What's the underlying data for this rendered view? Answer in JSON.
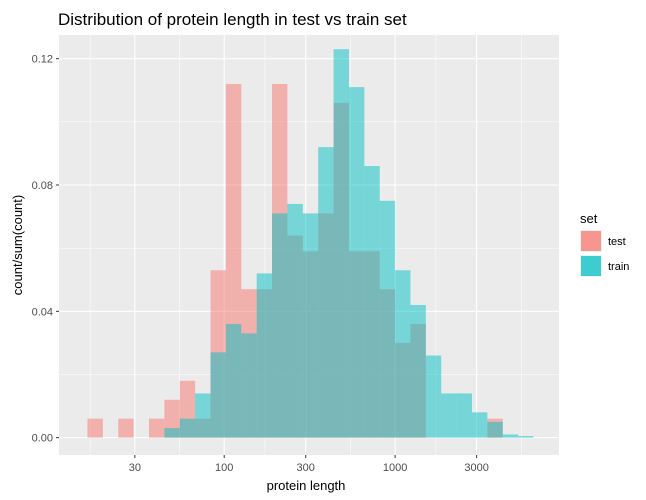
{
  "chart_data": {
    "type": "bar",
    "title": "Distribution of protein length in test vs train set",
    "xlabel": "protein length",
    "ylabel": "count/sum(count)",
    "x_scale": "log10",
    "xlim": [
      10.8,
      9100
    ],
    "ylim": [
      -0.0055,
      0.1275
    ],
    "x_ticks": [
      30,
      100,
      300,
      1000,
      3000
    ],
    "x_tick_labels": [
      "30",
      "100",
      "300",
      "1000",
      "3000"
    ],
    "y_ticks": [
      0,
      0.04,
      0.08,
      0.12
    ],
    "y_tick_labels": [
      "0.00",
      "0.04",
      "0.08",
      "0.12"
    ],
    "grid": true,
    "legend": {
      "title": "set",
      "position": "right"
    },
    "bins_log10": {
      "start": [
        1.2,
        1.29,
        1.38,
        1.47,
        1.56,
        1.65,
        1.74,
        1.83,
        1.92,
        2.01,
        2.1,
        2.19,
        2.28,
        2.37,
        2.46,
        2.55,
        2.64,
        2.73,
        2.82,
        2.91,
        3.0,
        3.09,
        3.18,
        3.27,
        3.36,
        3.45,
        3.54,
        3.63,
        3.72
      ],
      "end": [
        1.29,
        1.38,
        1.47,
        1.56,
        1.65,
        1.74,
        1.83,
        1.92,
        2.01,
        2.1,
        2.19,
        2.28,
        2.37,
        2.46,
        2.55,
        2.64,
        2.73,
        2.82,
        2.91,
        3.0,
        3.09,
        3.18,
        3.27,
        3.36,
        3.45,
        3.54,
        3.63,
        3.72,
        3.81
      ]
    },
    "series": [
      {
        "name": "test",
        "color": "#F8766D",
        "values": [
          0.006,
          0,
          0.006,
          0,
          0.006,
          0.012,
          0.018,
          0.006,
          0.053,
          0.112,
          0.047,
          0.047,
          0.112,
          0.064,
          0.059,
          0.071,
          0.106,
          0.059,
          0.059,
          0.047,
          0.03,
          0.036,
          0,
          0,
          0,
          0,
          0.006,
          0,
          0
        ]
      },
      {
        "name": "train",
        "color": "#00BFC4",
        "values": [
          0,
          0,
          0,
          0,
          0,
          0.003,
          0.006,
          0.014,
          0.027,
          0.036,
          0.033,
          0.052,
          0.071,
          0.074,
          0.071,
          0.092,
          0.123,
          0.111,
          0.086,
          0.075,
          0.053,
          0.042,
          0.026,
          0.014,
          0.014,
          0.008,
          0.005,
          0.001,
          0.0005
        ]
      }
    ]
  }
}
